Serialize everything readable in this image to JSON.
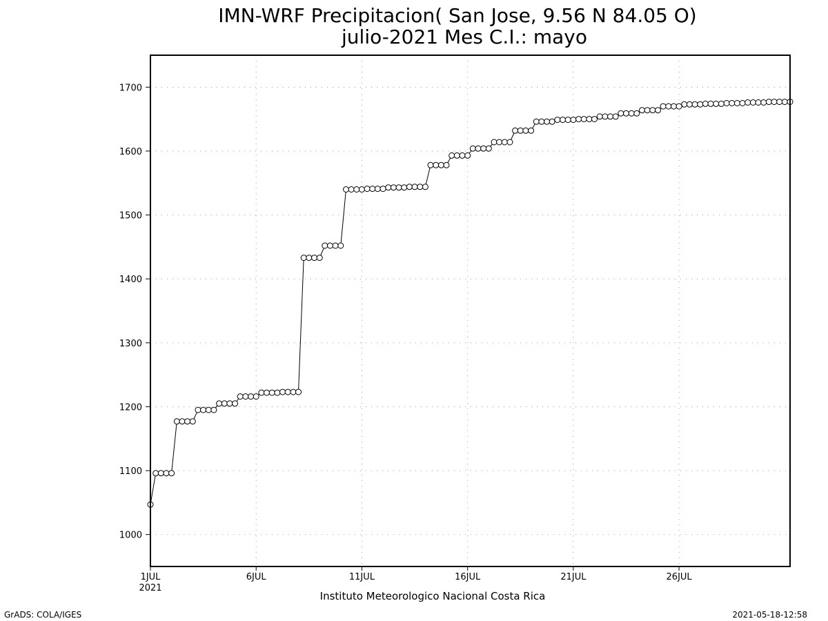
{
  "chart_data": {
    "type": "line",
    "title": "IMN-WRF  Precipitacion( San Jose, 9.56  N 84.05  O)",
    "subtitle": "julio-2021 Mes C.I.: mayo",
    "xlabel": "Instituto Meteorologico Nacional Costa Rica",
    "ylabel": "",
    "x_unit": "day of July 2021",
    "xlim": [
      1,
      31.25
    ],
    "ylim": [
      950,
      1750
    ],
    "yticks": [
      1000,
      1100,
      1200,
      1300,
      1400,
      1500,
      1600,
      1700
    ],
    "xticks": [
      {
        "day": 1,
        "label": "1JUL",
        "sublabel": "2021"
      },
      {
        "day": 6,
        "label": "6JUL",
        "sublabel": ""
      },
      {
        "day": 11,
        "label": "11JUL",
        "sublabel": ""
      },
      {
        "day": 16,
        "label": "16JUL",
        "sublabel": ""
      },
      {
        "day": 21,
        "label": "21JUL",
        "sublabel": ""
      },
      {
        "day": 26,
        "label": "26JUL",
        "sublabel": ""
      }
    ],
    "grid": true,
    "marker": "open-circle",
    "series": [
      {
        "values": [
          1047,
          1096,
          1096,
          1096,
          1096,
          1177,
          1177,
          1177,
          1177,
          1195,
          1195,
          1195,
          1195,
          1205,
          1205,
          1205,
          1205,
          1216,
          1216,
          1216,
          1216,
          1222,
          1222,
          1222,
          1222,
          1223,
          1223,
          1223,
          1223,
          1433,
          1433,
          1433,
          1433,
          1452,
          1452,
          1452,
          1452,
          1540,
          1540,
          1540,
          1540,
          1541,
          1541,
          1541,
          1541,
          1543,
          1543,
          1543,
          1543,
          1544,
          1544,
          1544,
          1544,
          1578,
          1578,
          1578,
          1578,
          1593,
          1593,
          1593,
          1593,
          1604,
          1604,
          1604,
          1604,
          1614,
          1614,
          1614,
          1614,
          1632,
          1632,
          1632,
          1632,
          1646,
          1646,
          1646,
          1646,
          1649,
          1649,
          1649,
          1649,
          1650,
          1650,
          1650,
          1650,
          1654,
          1654,
          1654,
          1654,
          1659,
          1659,
          1659,
          1659,
          1664,
          1664,
          1664,
          1664,
          1670,
          1670,
          1670,
          1670,
          1673,
          1673,
          1673,
          1673,
          1674,
          1674,
          1674,
          1674,
          1675,
          1675,
          1675,
          1675,
          1676,
          1676,
          1676,
          1676,
          1677,
          1677,
          1677,
          1677,
          1677
        ]
      }
    ]
  },
  "footer": {
    "left": "GrADS: COLA/IGES",
    "right": "2021-05-18-12:58"
  }
}
